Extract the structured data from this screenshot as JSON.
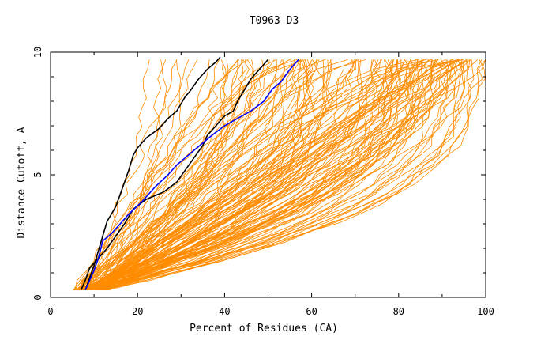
{
  "chart_data": {
    "type": "line",
    "title": "T0963-D3",
    "xlabel": "Percent of Residues (CA)",
    "ylabel": "Distance Cutoff, A",
    "xlim": [
      0,
      100
    ],
    "ylim": [
      0,
      10
    ],
    "x_ticks": [
      "0",
      "20",
      "40",
      "60",
      "80",
      "100"
    ],
    "y_ticks": [
      "0",
      "5",
      "10"
    ],
    "grid": false,
    "legend": "none",
    "colors": {
      "bundle": "#ff8c00",
      "black": "#000000",
      "blue": "#0000ff"
    },
    "series": [
      {
        "color": "#000000",
        "x": [
          8,
          9,
          10,
          11,
          12,
          13,
          15,
          16,
          17,
          18,
          19,
          20,
          22,
          25,
          27,
          29,
          30,
          31,
          32,
          34,
          35,
          36,
          38,
          39
        ],
        "y": [
          0.3,
          0.8,
          1.3,
          1.9,
          2.5,
          3.1,
          3.7,
          4.2,
          4.7,
          5.2,
          5.8,
          6.1,
          6.5,
          6.9,
          7.3,
          7.6,
          7.9,
          8.2,
          8.4,
          8.9,
          9.1,
          9.3,
          9.6,
          9.8
        ]
      },
      {
        "color": "#000000",
        "x": [
          7,
          8,
          9,
          11,
          13,
          15,
          17,
          19,
          22,
          26,
          29,
          31,
          33,
          35,
          36,
          38,
          40,
          42,
          43,
          44,
          45,
          46,
          48,
          50
        ],
        "y": [
          0.3,
          0.7,
          1.2,
          1.6,
          2.0,
          2.5,
          3.0,
          3.6,
          4.0,
          4.3,
          4.7,
          5.2,
          5.7,
          6.2,
          6.6,
          7.0,
          7.4,
          7.6,
          8.0,
          8.3,
          8.6,
          8.9,
          9.3,
          9.7
        ]
      },
      {
        "color": "#0000ff",
        "x": [
          8,
          9,
          10,
          11,
          12,
          14,
          16,
          18,
          21,
          24,
          27,
          29,
          31,
          33,
          35,
          37,
          40,
          43,
          46,
          49,
          51,
          53,
          55,
          57
        ],
        "y": [
          0.3,
          0.7,
          1.1,
          1.6,
          2.3,
          2.6,
          3.0,
          3.4,
          3.9,
          4.5,
          5.0,
          5.4,
          5.7,
          6.0,
          6.3,
          6.6,
          7.0,
          7.3,
          7.6,
          8.0,
          8.5,
          8.8,
          9.3,
          9.7
        ]
      }
    ]
  }
}
